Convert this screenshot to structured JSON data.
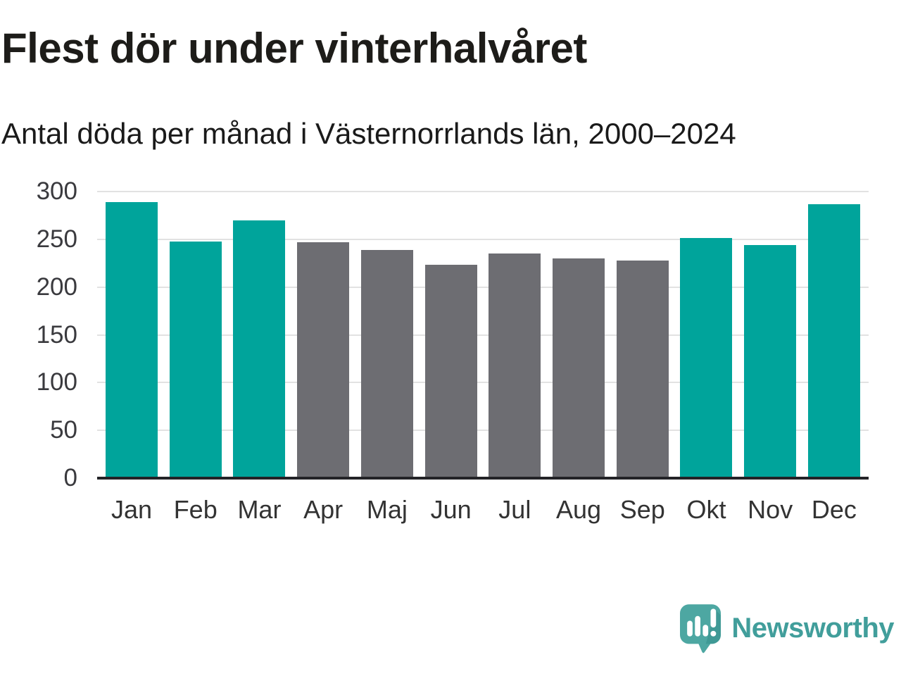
{
  "title": "Flest dör under vinterhalvåret",
  "subtitle": "Antal döda per månad i Västernorrlands län, 2000–2024",
  "chart_data": {
    "type": "bar",
    "categories": [
      "Jan",
      "Feb",
      "Mar",
      "Apr",
      "Maj",
      "Jun",
      "Jul",
      "Aug",
      "Sep",
      "Okt",
      "Nov",
      "Dec"
    ],
    "values": [
      289,
      248,
      270,
      247,
      239,
      223,
      235,
      230,
      228,
      251,
      244,
      287
    ],
    "bar_colors": [
      "teal",
      "teal",
      "teal",
      "gray",
      "gray",
      "gray",
      "gray",
      "gray",
      "gray",
      "teal",
      "teal",
      "teal"
    ],
    "colors": {
      "teal": "#00a49b",
      "gray": "#6d6d72"
    },
    "title": "Flest dör under vinterhalvåret",
    "subtitle": "Antal döda per månad i Västernorrlands län, 2000–2024",
    "xlabel": "",
    "ylabel": "",
    "ylim": [
      0,
      300
    ],
    "yticks": [
      0,
      50,
      100,
      150,
      200,
      250,
      300
    ],
    "grid": "horizontal",
    "legend": "none"
  },
  "footer": {
    "brand": "Newsworthy",
    "brand_color": "#419e9b",
    "logo_icon": "newsworthy-speech-bubble-bar-chart-icon"
  }
}
